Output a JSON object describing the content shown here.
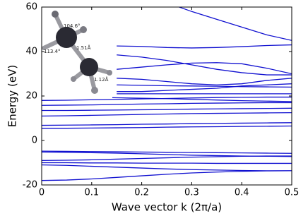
{
  "chart_data": {
    "type": "line",
    "xlabel": "Wave vector k (2π/a)",
    "ylabel": "Energy (eV)",
    "annotations": [
      "104.6°",
      "1.51Å",
      "113.4°",
      "1.12Å"
    ],
    "x": [
      0,
      0.05,
      0.1,
      0.15,
      0.2,
      0.25,
      0.3,
      0.35,
      0.4,
      0.45,
      0.5
    ],
    "xlim": [
      0,
      0.5
    ],
    "xticks": [
      0,
      0.1,
      0.2,
      0.3,
      0.4,
      0.5
    ],
    "ylim": [
      -20,
      60
    ],
    "yticks": [
      -20,
      0,
      20,
      40,
      60
    ],
    "series": [
      {
        "color": "#1010d0",
        "values": [
          -18,
          -17.8,
          -17.3,
          -16.6,
          -15.9,
          -15.2,
          -14.6,
          -14.2,
          -13.9,
          -13.7,
          -13.6
        ]
      },
      {
        "color": "#1010d0",
        "values": [
          -11,
          -11.2,
          -11.6,
          -12,
          -12.4,
          -12.8,
          -13.1,
          -13.3,
          -13.5,
          -13.6,
          -13.6
        ]
      },
      {
        "color": "#1010d0",
        "values": [
          -10,
          -10,
          -10.1,
          -10.1,
          -10.2,
          -10.2,
          -10.2,
          -10.3,
          -10.3,
          -10.3,
          -10.3
        ]
      },
      {
        "color": "#1010d0",
        "values": [
          -9,
          -8.9,
          -8.7,
          -8.4,
          -8.1,
          -7.8,
          -7.5,
          -7.3,
          -7.1,
          -7,
          -7
        ]
      },
      {
        "color": "#1010d0",
        "values": [
          -4.8,
          -4.9,
          -5,
          -5.1,
          -5.2,
          -5.3,
          -5.4,
          -5.5,
          -5.6,
          -5.7,
          -5.8
        ]
      },
      {
        "color": "#1010d0",
        "values": [
          -5.2,
          -5.3,
          -5.5,
          -5.7,
          -6,
          -6.3,
          -6.6,
          -6.8,
          -7,
          -7.1,
          -7.2
        ]
      },
      {
        "color": "#1010d0",
        "values": [
          5.5,
          5.5,
          5.6,
          5.7,
          5.8,
          6,
          6.1,
          6.2,
          6.3,
          6.4,
          6.5
        ]
      },
      {
        "color": "#1010d0",
        "values": [
          6.8,
          6.9,
          7,
          7.1,
          7.3,
          7.4,
          7.6,
          7.7,
          7.8,
          7.9,
          8
        ]
      },
      {
        "color": "#1010d0",
        "values": [
          11,
          11.1,
          11.3,
          11.5,
          11.7,
          11.9,
          12.1,
          12.2,
          12.3,
          12.4,
          12.5
        ]
      },
      {
        "color": "#1010d0",
        "values": [
          13.5,
          13.5,
          13.6,
          13.7,
          13.8,
          13.9,
          14.1,
          14.2,
          14.3,
          14.4,
          14.5
        ]
      },
      {
        "color": "#1010d0",
        "values": [
          15.8,
          15.9,
          16,
          16.2,
          16.4,
          16.5,
          16.7,
          16.8,
          16.9,
          17,
          17
        ]
      },
      {
        "color": "#1010d0",
        "values": [
          18,
          18.1,
          18.3,
          18.5,
          18.7,
          18.9,
          19.1,
          19.3,
          19.4,
          19.5,
          19.5
        ]
      },
      {
        "color": "#1010d0",
        "values": [
          19.5,
          19.5,
          19.4,
          19.2,
          19,
          18.8,
          18.5,
          18.2,
          17.9,
          17.7,
          17.5
        ]
      },
      {
        "color": "#1010d0",
        "values": [
          null,
          null,
          null,
          42.5,
          42.3,
          41.8,
          41.6,
          41.8,
          42.2,
          42.7,
          43
        ]
      },
      {
        "color": "#1010d0",
        "values": [
          null,
          null,
          null,
          38.5,
          37.5,
          36,
          34,
          32,
          30.5,
          29.5,
          29.5
        ]
      },
      {
        "color": "#1010d0",
        "values": [
          null,
          null,
          null,
          32,
          33,
          34,
          34.8,
          35,
          34.5,
          32.5,
          30
        ]
      },
      {
        "color": "#1010d0",
        "values": [
          null,
          null,
          null,
          28,
          27.5,
          26.5,
          25.5,
          25,
          25.5,
          27,
          28
        ]
      },
      {
        "color": "#1010d0",
        "values": [
          null,
          null,
          null,
          25,
          24.8,
          24.6,
          24.5,
          24.4,
          24.2,
          24.1,
          24
        ]
      },
      {
        "color": "#1010d0",
        "values": [
          null,
          null,
          null,
          22,
          22,
          22.5,
          23,
          23.5,
          24.5,
          25,
          25.5
        ]
      },
      {
        "color": "#1010d0",
        "values": [
          null,
          null,
          null,
          21,
          21,
          21,
          21,
          21,
          21,
          21,
          21
        ]
      },
      {
        "color": "#1010d0",
        "values": [
          null,
          null,
          null,
          null,
          null,
          62,
          58,
          54.5,
          51,
          47.5,
          45
        ]
      }
    ]
  }
}
